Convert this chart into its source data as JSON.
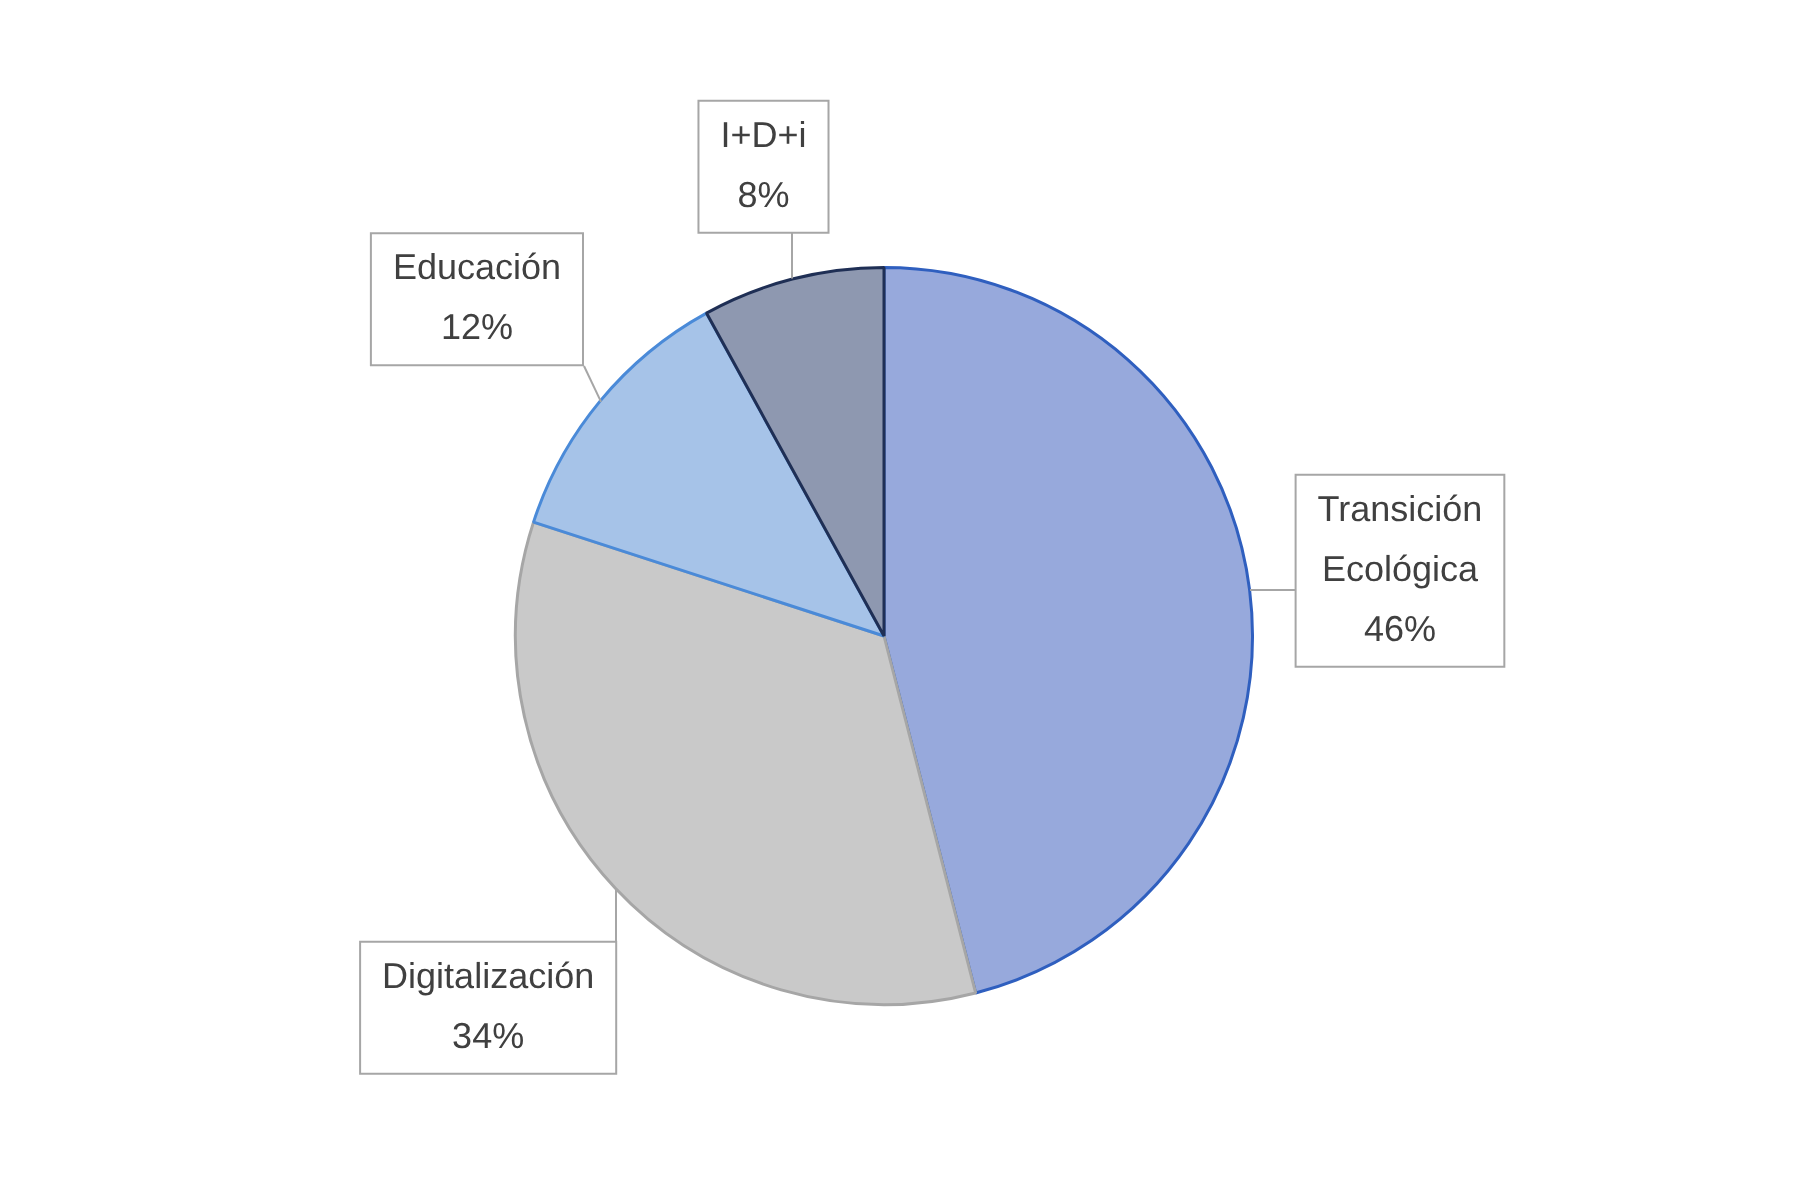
{
  "chart_data": {
    "type": "pie",
    "categories": [
      "Transición Ecológica",
      "Digitalización",
      "Educación",
      "I+D+i"
    ],
    "values": [
      46,
      34,
      12,
      8
    ],
    "value_labels": [
      "46%",
      "34%",
      "12%",
      "8%"
    ],
    "colors": [
      "#97a9dc",
      "#c9c9c9",
      "#a6c3e8",
      "#8e98b0"
    ],
    "legend": false
  }
}
